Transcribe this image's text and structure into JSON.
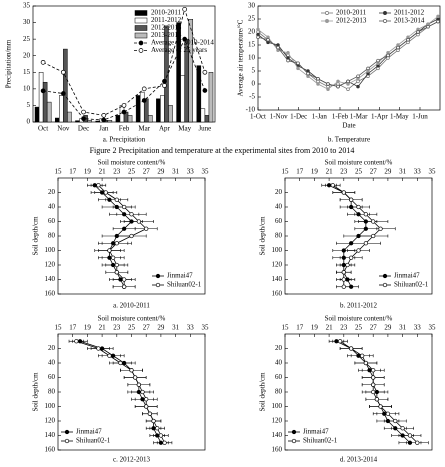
{
  "figure_caption": "Figure 2    Precipitation and temperature at the experimental sites from 2010 to 2014",
  "chart_data": [
    {
      "type": "bar",
      "caption": "a. Precipitation",
      "ylabel": "Precipitation/mm",
      "categories": [
        "Oct",
        "Nov",
        "Dec",
        "Jan",
        "Feb",
        "Mar",
        "Apr",
        "May",
        "June"
      ],
      "ylim": [
        0,
        35
      ],
      "yticks": [
        0,
        5,
        10,
        15,
        20,
        25,
        30,
        35
      ],
      "legend": "upper-right",
      "series": [
        {
          "name": "2010-2011",
          "color": "#000000",
          "values": [
            4.5,
            1.2,
            0.4,
            0.3,
            2,
            8,
            7,
            30,
            17
          ]
        },
        {
          "name": "2011-2012",
          "color": "#ffffff",
          "values": [
            15,
            8,
            1,
            1,
            5,
            9,
            8,
            14,
            4
          ]
        },
        {
          "name": "2012-2013",
          "color": "#555555",
          "values": [
            12,
            22,
            2,
            0.5,
            3,
            7,
            29,
            25,
            2
          ]
        },
        {
          "name": "2013-2014",
          "color": "#bbbbbb",
          "values": [
            6,
            3,
            0.5,
            0.5,
            2,
            2,
            5,
            31,
            15
          ]
        },
        {
          "name": "Average of 2010-2014",
          "type": "line",
          "marker": "filled",
          "color": "#000000",
          "values": [
            9.4,
            8.6,
            1,
            0.6,
            3,
            6.5,
            12.3,
            25,
            9.5
          ]
        },
        {
          "name": "Average of 25 years",
          "type": "line",
          "marker": "open",
          "color": "#000000",
          "values": [
            18,
            15,
            3,
            2,
            5,
            10,
            11,
            34,
            15
          ]
        }
      ]
    },
    {
      "type": "line",
      "caption": "b. Temperature",
      "xlabel": "Date",
      "ylabel": "Average air temperature/°C",
      "x": [
        0,
        15,
        30,
        45,
        60,
        75,
        90,
        105,
        120,
        135,
        150,
        165,
        180,
        195,
        210,
        225,
        240,
        255,
        270
      ],
      "xlim": [
        0,
        273
      ],
      "xticks": [
        {
          "value": 0,
          "label": "1-Oct"
        },
        {
          "value": 31,
          "label": "1-Nov"
        },
        {
          "value": 61,
          "label": "1-Dec"
        },
        {
          "value": 92,
          "label": "1-Jan"
        },
        {
          "value": 123,
          "label": "1-Feb"
        },
        {
          "value": 151,
          "label": "1-Mar"
        },
        {
          "value": 182,
          "label": "1-Apr"
        },
        {
          "value": 212,
          "label": "1-May"
        },
        {
          "value": 243,
          "label": "1-Jun"
        }
      ],
      "ylim": [
        -10,
        30
      ],
      "yticks": [
        -10,
        -5,
        0,
        5,
        10,
        15,
        20,
        25,
        30
      ],
      "legend": "upper-right",
      "series": [
        {
          "name": "2010-2011",
          "color": "#777777",
          "marker": "open",
          "values": [
            20,
            17,
            14,
            11,
            8,
            4,
            1,
            -1,
            0,
            -2,
            1,
            3,
            6,
            10,
            13,
            16,
            19,
            22,
            24
          ]
        },
        {
          "name": "2011-2012",
          "color": "#333333",
          "marker": "filled",
          "values": [
            19,
            16,
            15,
            10,
            7,
            5,
            2,
            0,
            -1,
            1,
            -1,
            4,
            7,
            11,
            14,
            17,
            20,
            23,
            25
          ]
        },
        {
          "name": "2012-2013",
          "color": "#999999",
          "marker": "filled",
          "values": [
            21,
            18,
            13,
            12,
            6,
            3,
            0,
            -2,
            1,
            0,
            2,
            5,
            8,
            12,
            15,
            18,
            21,
            23,
            26
          ]
        },
        {
          "name": "2013-2014",
          "color": "#555555",
          "marker": "open",
          "values": [
            18,
            17,
            14,
            9,
            8,
            4,
            2,
            0,
            -1,
            1,
            3,
            6,
            9,
            11,
            14,
            17,
            20,
            22,
            24
          ]
        }
      ]
    },
    {
      "type": "profile",
      "caption": "a. 2010-2011",
      "xlabel": "Soil moisture content/%",
      "ylabel": "Soil depth/cm",
      "y": [
        10,
        20,
        30,
        40,
        50,
        60,
        70,
        80,
        90,
        100,
        110,
        120,
        130,
        140,
        150
      ],
      "xlim": [
        15,
        35
      ],
      "xticks": [
        15,
        17,
        19,
        21,
        23,
        25,
        27,
        29,
        31,
        33,
        35
      ],
      "ylim": [
        0,
        160
      ],
      "yticks": [
        20,
        40,
        60,
        80,
        100,
        120,
        140,
        160
      ],
      "legend": "lower-right",
      "series": [
        {
          "name": "Jinmai47",
          "marker": "filled",
          "color": "#000000",
          "values": [
            20,
            21,
            22,
            23,
            24,
            25,
            24,
            23,
            22.5,
            22,
            22,
            22.5,
            23,
            23.5,
            24
          ],
          "errors": [
            1,
            1.5,
            1.5,
            2,
            2,
            1.5,
            1.5,
            2,
            2,
            2,
            1.5,
            1.5,
            1.5,
            1.5,
            1.5
          ]
        },
        {
          "name": "Shiluan02-1",
          "marker": "open",
          "color": "#000000",
          "values": [
            20.5,
            21.5,
            23,
            24,
            25,
            26,
            27,
            25,
            23,
            22,
            22.5,
            23,
            23,
            24,
            24
          ],
          "errors": [
            1,
            1.5,
            1.5,
            1.5,
            2,
            2,
            1.5,
            2,
            2,
            1.5,
            1.5,
            1.5,
            1.5,
            1.5,
            1.5
          ]
        }
      ]
    },
    {
      "type": "profile",
      "caption": "b. 2011-2012",
      "xlabel": "Soil moisture content/%",
      "ylabel": "Soil depth/cm",
      "y": [
        10,
        20,
        30,
        40,
        50,
        60,
        70,
        80,
        90,
        100,
        110,
        120,
        130,
        140,
        150
      ],
      "xlim": [
        15,
        35
      ],
      "xticks": [
        15,
        17,
        19,
        21,
        23,
        25,
        27,
        29,
        31,
        33,
        35
      ],
      "ylim": [
        0,
        160
      ],
      "yticks": [
        20,
        40,
        60,
        80,
        100,
        120,
        140,
        160
      ],
      "legend": "lower-right",
      "series": [
        {
          "name": "Jinmai47",
          "marker": "filled",
          "color": "#000000",
          "values": [
            21,
            23,
            24,
            24,
            25,
            26,
            26,
            25,
            24,
            23,
            23,
            23,
            23,
            23.5,
            24
          ],
          "errors": [
            1,
            1.5,
            1.5,
            1.5,
            1.5,
            1.5,
            1.5,
            2,
            2,
            1.5,
            1.5,
            1,
            1,
            1,
            1
          ]
        },
        {
          "name": "Shiluan02-1",
          "marker": "open",
          "color": "#000000",
          "values": [
            21.5,
            23,
            24,
            25,
            26,
            27,
            28,
            27,
            26,
            25,
            24,
            23.5,
            23,
            23,
            23
          ],
          "errors": [
            1,
            1.5,
            1.5,
            1.5,
            1.5,
            2,
            2,
            2,
            2,
            1.5,
            1.5,
            1,
            1,
            1,
            1
          ]
        }
      ]
    },
    {
      "type": "profile",
      "caption": "c. 2012-2013",
      "xlabel": "Soil moisture content/%",
      "ylabel": "Soil depth/cm",
      "y": [
        10,
        20,
        30,
        40,
        50,
        60,
        70,
        80,
        90,
        100,
        110,
        120,
        130,
        140,
        150
      ],
      "xlim": [
        15,
        35
      ],
      "xticks": [
        15,
        17,
        19,
        21,
        23,
        25,
        27,
        29,
        31,
        33,
        35
      ],
      "ylim": [
        0,
        160
      ],
      "yticks": [
        20,
        40,
        60,
        80,
        100,
        120,
        140,
        160
      ],
      "legend": "lower-left",
      "series": [
        {
          "name": "Jinmai47",
          "marker": "filled",
          "color": "#000000",
          "values": [
            18,
            21,
            22.5,
            24,
            25,
            25.5,
            26,
            26,
            26.5,
            27,
            27.5,
            28,
            28,
            28.5,
            29
          ],
          "errors": [
            1,
            1.5,
            1.5,
            1.5,
            1.5,
            1.5,
            1.5,
            1.5,
            1.5,
            1.5,
            1,
            1,
            1,
            1,
            1
          ]
        },
        {
          "name": "Shiluan02-1",
          "marker": "open",
          "color": "#000000",
          "values": [
            17.5,
            20.5,
            22,
            23.5,
            25,
            25.5,
            26,
            26.5,
            27,
            27,
            27.5,
            28,
            28.5,
            29,
            29.5
          ],
          "errors": [
            1,
            1.5,
            1.5,
            1.5,
            1.5,
            1.5,
            1.5,
            1.5,
            1.5,
            1.5,
            1,
            1,
            1,
            1,
            1
          ]
        }
      ]
    },
    {
      "type": "profile",
      "caption": "d. 2013-2014",
      "xlabel": "Soil moisture content/%",
      "ylabel": "Soil depth/cm",
      "y": [
        10,
        20,
        30,
        40,
        50,
        60,
        70,
        80,
        90,
        100,
        110,
        120,
        130,
        140,
        150
      ],
      "xlim": [
        15,
        35
      ],
      "xticks": [
        15,
        17,
        19,
        21,
        23,
        25,
        27,
        29,
        31,
        33,
        35
      ],
      "ylim": [
        0,
        160
      ],
      "yticks": [
        20,
        40,
        60,
        80,
        100,
        120,
        140,
        160
      ],
      "legend": "lower-left",
      "series": [
        {
          "name": "Jinmai47",
          "marker": "filled",
          "color": "#000000",
          "values": [
            22,
            24,
            25,
            26,
            26.5,
            27,
            27,
            27.5,
            27.5,
            28,
            28.5,
            29,
            30,
            31,
            32
          ],
          "errors": [
            1,
            1.5,
            1.5,
            1.5,
            1.5,
            1.5,
            1.5,
            1.5,
            1.5,
            1.5,
            1.5,
            1.5,
            1.5,
            1.5,
            1.5
          ]
        },
        {
          "name": "Shiluan02-1",
          "marker": "open",
          "color": "#000000",
          "values": [
            22.5,
            24,
            25.5,
            26,
            27,
            27,
            27,
            27,
            27.5,
            28,
            29,
            30,
            31,
            32,
            33
          ],
          "errors": [
            1,
            1.5,
            1.5,
            1.5,
            1.5,
            1.5,
            1.5,
            1.5,
            1.5,
            1.5,
            1.5,
            1.5,
            1.5,
            1.5,
            1.5
          ]
        }
      ]
    }
  ]
}
